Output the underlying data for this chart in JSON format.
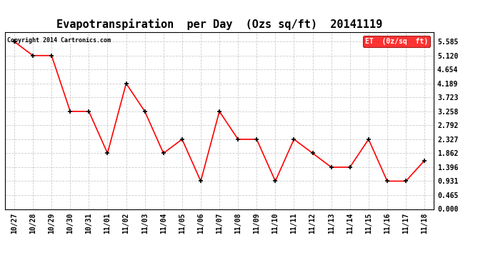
{
  "title": "Evapotranspiration  per Day  (Ozs sq/ft)  20141119",
  "copyright": "Copyright 2014 Cartronics.com",
  "legend_label": "ET  (0z/sq  ft)",
  "x_labels": [
    "10/27",
    "10/28",
    "10/29",
    "10/30",
    "10/31",
    "11/01",
    "11/02",
    "11/03",
    "11/04",
    "11/05",
    "11/06",
    "11/07",
    "11/08",
    "11/09",
    "11/10",
    "11/11",
    "11/12",
    "11/13",
    "11/14",
    "11/15",
    "11/16",
    "11/17",
    "11/18"
  ],
  "y_values": [
    5.585,
    5.12,
    5.12,
    3.258,
    3.258,
    1.862,
    4.189,
    3.258,
    1.862,
    2.327,
    0.931,
    3.258,
    2.327,
    2.327,
    0.931,
    2.327,
    1.862,
    1.396,
    1.396,
    2.327,
    0.931,
    0.931,
    1.62
  ],
  "line_color": "#ff0000",
  "marker_color": "#000000",
  "background_color": "#ffffff",
  "grid_color": "#cccccc",
  "y_ticks": [
    0.0,
    0.465,
    0.931,
    1.396,
    1.862,
    2.327,
    2.792,
    3.258,
    3.723,
    4.189,
    4.654,
    5.12,
    5.585
  ],
  "ylim": [
    0.0,
    5.9
  ],
  "title_fontsize": 11,
  "tick_fontsize": 7,
  "copyright_fontsize": 6
}
